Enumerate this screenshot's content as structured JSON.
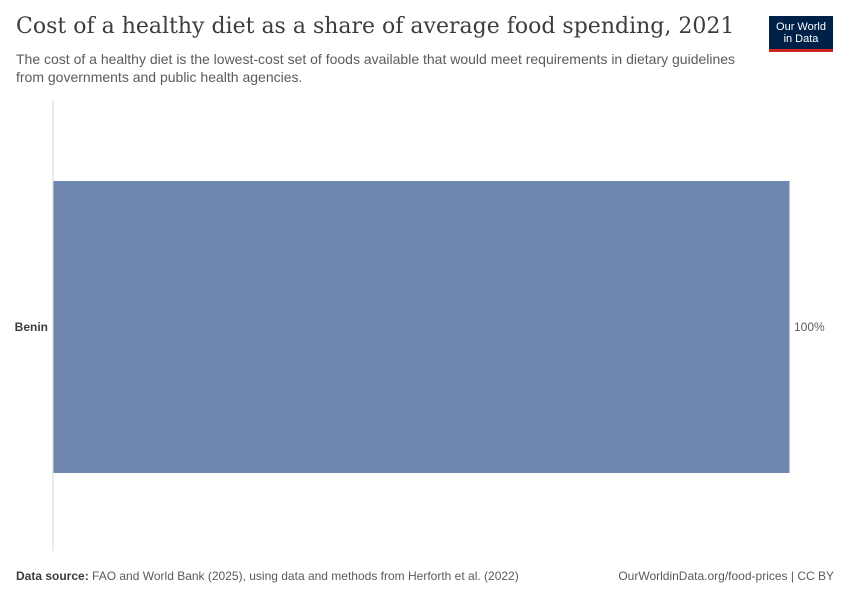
{
  "header": {
    "title": "Cost of a healthy diet as a share of average food spending, 2021",
    "subtitle": "The cost of a healthy diet is the lowest-cost set of foods available that would meet requirements in dietary guidelines from governments and public health agencies."
  },
  "logo": {
    "line1": "Our World",
    "line2": "in Data"
  },
  "footer": {
    "source_label": "Data source:",
    "source_text": "FAO and World Bank (2025), using data and methods from Herforth et al. (2022)",
    "url_license": "OurWorldinData.org/food-prices | CC BY"
  },
  "colors": {
    "bar": "#6f87b0",
    "axis": "#d4d4d4",
    "label": "#5b5b5b",
    "category": "#3d3d3d"
  },
  "chart_data": {
    "type": "bar",
    "orientation": "horizontal",
    "categories": [
      "Benin"
    ],
    "values": [
      100
    ],
    "value_labels": [
      "100%"
    ],
    "xlim": [
      0,
      100
    ],
    "grid": false
  }
}
